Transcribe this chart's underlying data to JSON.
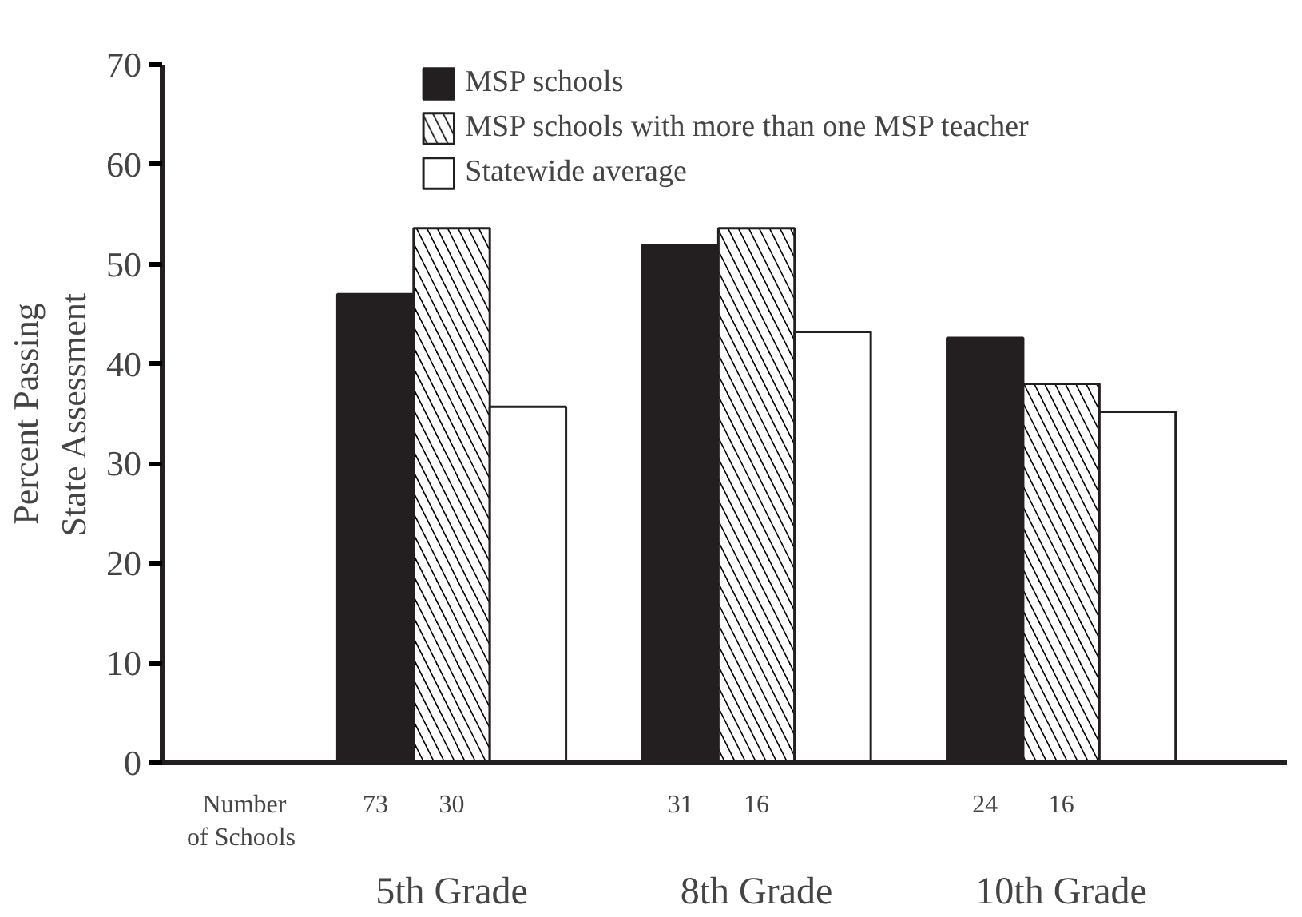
{
  "chart_data": {
    "type": "bar",
    "ylabel": "Percent Passing\nState Assessment",
    "categories": [
      "5th Grade",
      "8th Grade",
      "10th Grade"
    ],
    "series": [
      {
        "name": "MSP schools",
        "color": "#231f20",
        "values": [
          47.0,
          51.9,
          42.6
        ]
      },
      {
        "name": "MSP schools with more than one MSP teacher",
        "color": "#000000",
        "values": [
          53.6,
          53.6,
          38.0
        ]
      },
      {
        "name": "Statewide average",
        "color": "#ffffff",
        "values": [
          35.7,
          43.2,
          35.2
        ]
      }
    ],
    "ylim": [
      0,
      70
    ],
    "yticks": [
      0,
      10,
      20,
      30,
      40,
      50,
      60,
      70
    ],
    "grid": false,
    "legend": "top",
    "annotations": [
      "Number\nof  Schools",
      "73",
      "30",
      "31",
      "16",
      "24",
      "16"
    ]
  }
}
